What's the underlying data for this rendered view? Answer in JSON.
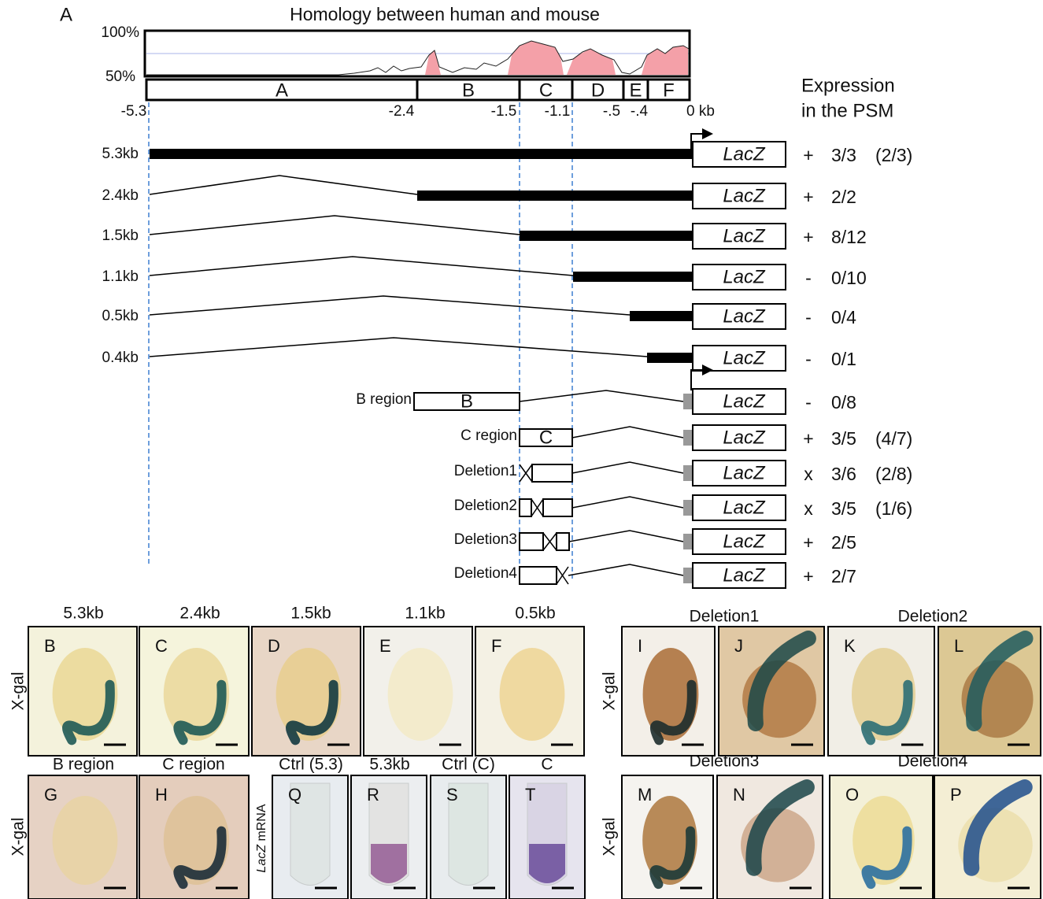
{
  "panel_a": {
    "letter": "A",
    "title": "Homology between human and mouse",
    "axis_labels": [
      "100%",
      "50%"
    ],
    "regions": [
      "A",
      "B",
      "C",
      "D",
      "E",
      "F"
    ],
    "positions": [
      "-5.3",
      "-2.4",
      "-1.5",
      "-1.1",
      "-.5",
      "-.4",
      "0 kb"
    ],
    "expression_header": [
      "Expression",
      "in the PSM"
    ],
    "deletion_constructs": [
      {
        "label": "5.3kb",
        "reporter": "LacZ",
        "sign": "+",
        "result": "3/3",
        "extra": "(2/3)"
      },
      {
        "label": "2.4kb",
        "reporter": "LacZ",
        "sign": "+",
        "result": "2/2"
      },
      {
        "label": "1.5kb",
        "reporter": "LacZ",
        "sign": "+",
        "result": "8/12"
      },
      {
        "label": "1.1kb",
        "reporter": "LacZ",
        "sign": "-",
        "result": "0/10"
      },
      {
        "label": "0.5kb",
        "reporter": "LacZ",
        "sign": "-",
        "result": "0/4"
      },
      {
        "label": "0.4kb",
        "reporter": "LacZ",
        "sign": "-",
        "result": "0/1"
      }
    ],
    "region_constructs": [
      {
        "label": "B region",
        "box": "B",
        "reporter": "LacZ",
        "sign": "-",
        "result": "0/8"
      },
      {
        "label": "C region",
        "box": "C",
        "reporter": "LacZ",
        "sign": "+",
        "result": "3/5",
        "extra": "(4/7)"
      },
      {
        "label": "Deletion1",
        "reporter": "LacZ",
        "sign": "x",
        "result": "3/6",
        "extra": "(2/8)"
      },
      {
        "label": "Deletion2",
        "reporter": "LacZ",
        "sign": "x",
        "result": "3/5",
        "extra": "(1/6)"
      },
      {
        "label": "Deletion3",
        "reporter": "LacZ",
        "sign": "+",
        "result": "2/5"
      },
      {
        "label": "Deletion4",
        "reporter": "LacZ",
        "sign": "+",
        "result": "2/7"
      }
    ]
  },
  "photos": {
    "headers": [
      "5.3kb",
      "2.4kb",
      "1.5kb",
      "1.1kb",
      "0.5kb",
      "B region",
      "C region",
      "Ctrl (5.3)",
      "5.3kb",
      "Ctrl (C)",
      "C",
      "Deletion1",
      "Deletion2",
      "Deletion3",
      "Deletion4"
    ],
    "side_labels": [
      "X-gal",
      "X-gal",
      "X-gal",
      "X-gal"
    ],
    "mrna_label": {
      "italic": "LacZ",
      "rest": " mRNA"
    },
    "letters": [
      "B",
      "C",
      "D",
      "E",
      "F",
      "G",
      "H",
      "Q",
      "R",
      "S",
      "T",
      "I",
      "J",
      "K",
      "L",
      "M",
      "N",
      "O",
      "P"
    ]
  }
}
